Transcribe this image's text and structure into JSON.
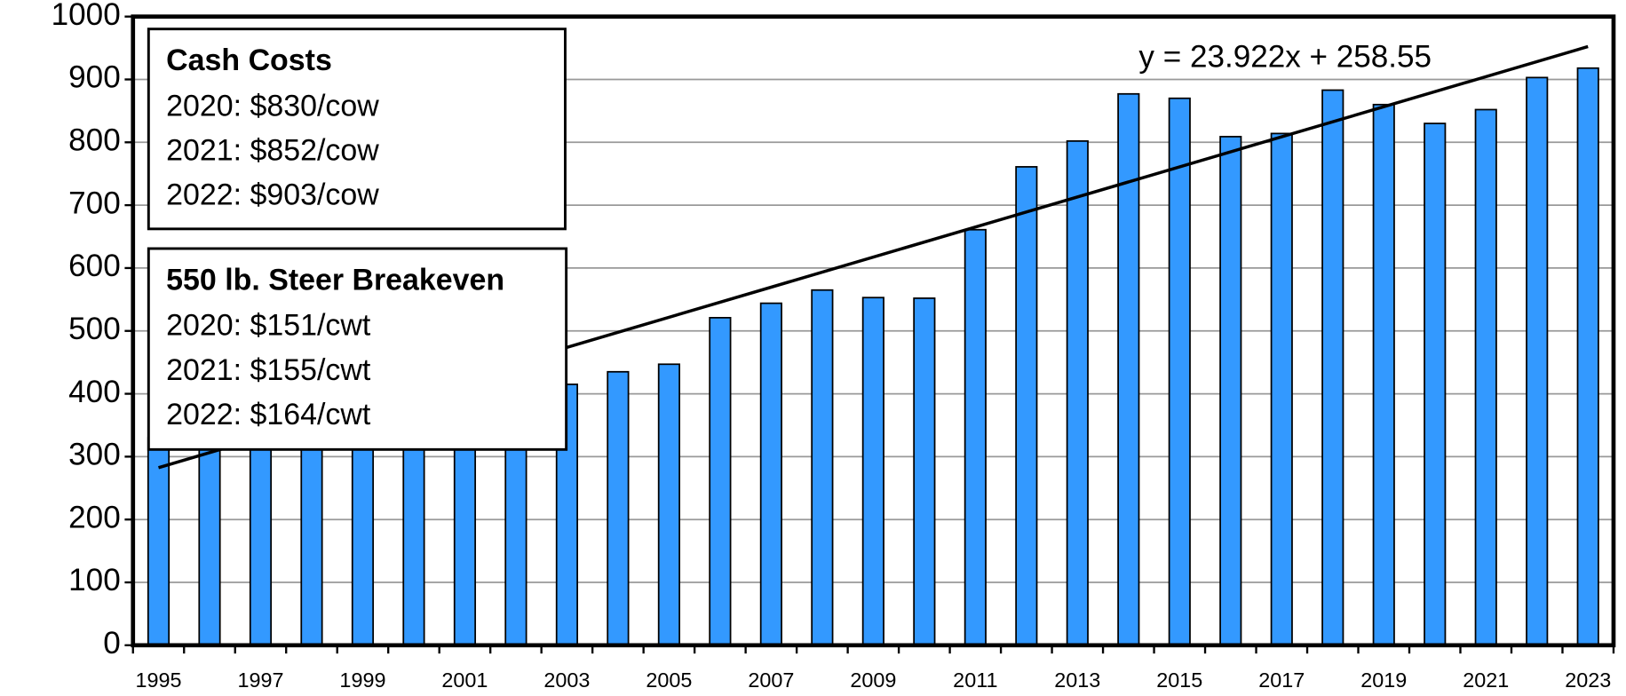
{
  "chart_data": {
    "type": "bar",
    "categories": [
      "1995",
      null,
      "1997",
      null,
      "1999",
      null,
      "2001",
      null,
      "2003",
      null,
      "2005",
      null,
      "2007",
      null,
      "2009",
      null,
      "2011",
      null,
      "2013",
      null,
      "2015",
      null,
      "2017",
      null,
      "2019",
      null,
      "2021",
      null,
      "2023"
    ],
    "values": [
      330,
      320,
      325,
      335,
      345,
      370,
      380,
      390,
      415,
      435,
      447,
      521,
      544,
      565,
      553,
      552,
      661,
      761,
      802,
      877,
      870,
      809,
      814,
      883,
      860,
      830,
      852,
      903,
      918
    ],
    "color": "#3399ff",
    "ylim": [
      0,
      1000
    ],
    "yticks": [
      0,
      100,
      200,
      300,
      400,
      500,
      600,
      700,
      800,
      900,
      1000
    ],
    "grid": true,
    "trendline": {
      "label": "y = 23.922x + 258.55",
      "slope": 23.922,
      "intercept": 258.55
    },
    "annotations": [
      {
        "title": "Cash Costs",
        "lines": [
          "2020: $830/cow",
          "2021: $852/cow",
          "2022: $903/cow"
        ]
      },
      {
        "title": "550 lb. Steer Breakeven",
        "lines": [
          "2020: $151/cwt",
          "2021: $155/cwt",
          "2022: $164/cwt"
        ]
      }
    ]
  }
}
